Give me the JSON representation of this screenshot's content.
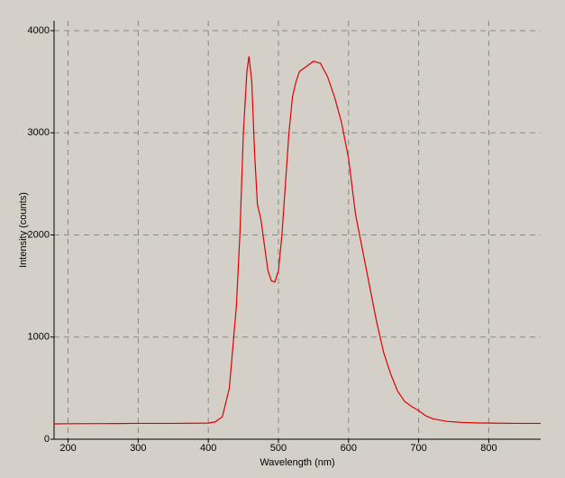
{
  "chart_data": {
    "type": "line",
    "x_label": "Wavelength (nm)",
    "y_label": "Intensity (counts)",
    "x": [
      180,
      200,
      250,
      300,
      350,
      400,
      410,
      420,
      430,
      440,
      445,
      450,
      455,
      458,
      462,
      466,
      470,
      475,
      480,
      485,
      490,
      495,
      500,
      505,
      510,
      515,
      520,
      525,
      530,
      540,
      550,
      560,
      570,
      580,
      590,
      600,
      610,
      620,
      630,
      640,
      650,
      660,
      670,
      680,
      690,
      700,
      710,
      720,
      740,
      760,
      780,
      800,
      840,
      874
    ],
    "series": [
      {
        "name": "Intensity",
        "color": "#e00000",
        "values": [
          150,
          152,
          153,
          155,
          155,
          158,
          170,
          220,
          500,
          1300,
          2000,
          3000,
          3600,
          3750,
          3500,
          2800,
          2300,
          2150,
          1900,
          1650,
          1550,
          1540,
          1650,
          2000,
          2500,
          3000,
          3350,
          3500,
          3600,
          3650,
          3700,
          3680,
          3550,
          3350,
          3100,
          2750,
          2200,
          1850,
          1500,
          1150,
          850,
          640,
          470,
          370,
          320,
          280,
          230,
          200,
          175,
          165,
          160,
          158,
          155,
          155
        ]
      }
    ],
    "xlim": [
      180,
      874
    ],
    "ylim": [
      0,
      4097
    ],
    "xticks": [
      200,
      300,
      400,
      500,
      600,
      700,
      800
    ],
    "yticks": [
      0,
      1000,
      2000,
      3000,
      4000
    ],
    "grid": true
  }
}
